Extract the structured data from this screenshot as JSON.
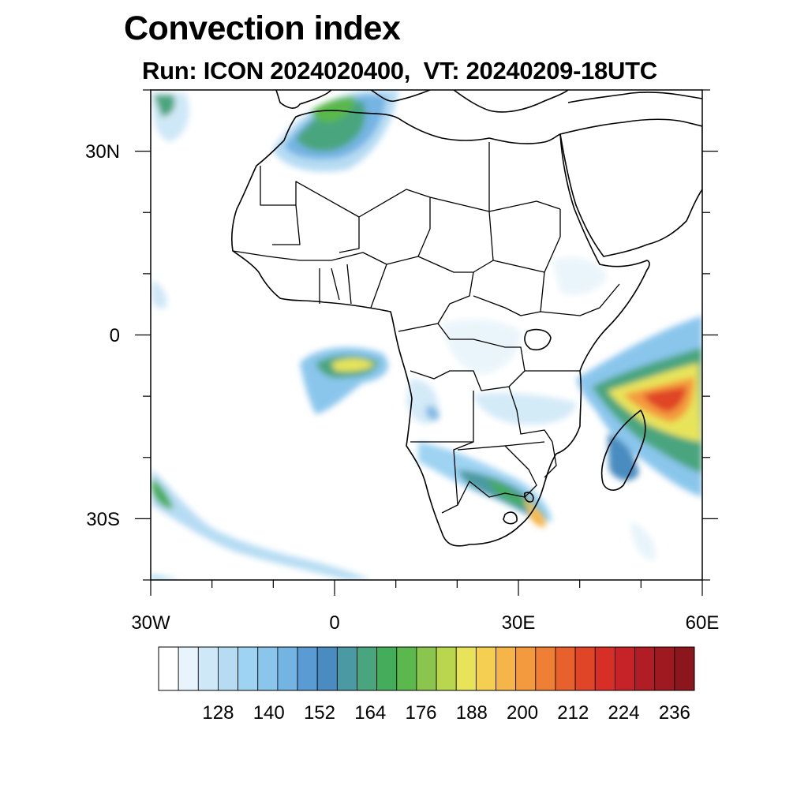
{
  "header": {
    "title": "Convection index",
    "subtitle": "Run: ICON 2024020400,  VT: 20240209-18UTC"
  },
  "map": {
    "region": "Africa",
    "lon_range": [
      -30,
      60
    ],
    "lat_range": [
      -40,
      40
    ],
    "lon_labels": [
      "30W",
      "0",
      "30E",
      "60E"
    ],
    "lat_labels": [
      "30N",
      "0",
      "30S"
    ]
  },
  "colorbar": {
    "labels": [
      "128",
      "140",
      "152",
      "164",
      "176",
      "188",
      "200",
      "212",
      "224",
      "236"
    ],
    "colors": [
      "#ffffff",
      "#e8f4fb",
      "#cfe8f7",
      "#b6dcf3",
      "#9ed3f2",
      "#8ac6ec",
      "#74b4e3",
      "#5b9bd4",
      "#4a8cc0",
      "#4b9aa3",
      "#48a57e",
      "#44ad5c",
      "#5ab84c",
      "#8cc54e",
      "#b9d64f",
      "#e8e45a",
      "#f4cf52",
      "#f6b548",
      "#f49a3e",
      "#ef7f34",
      "#e8612c",
      "#e04528",
      "#d72f28",
      "#c52327",
      "#b11d24",
      "#9e1a20",
      "#8b161c"
    ]
  }
}
